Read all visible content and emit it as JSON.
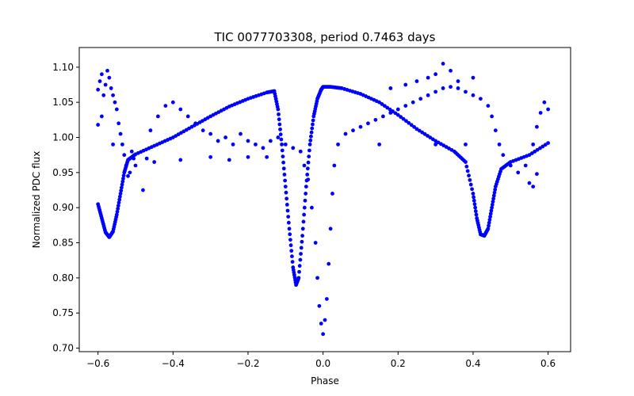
{
  "chart_data": {
    "type": "scatter",
    "title": "TIC 0077703308, period 0.7463 days",
    "xlabel": "Phase",
    "ylabel": "Normalized PDC flux",
    "xlim": [
      -0.65,
      0.66
    ],
    "ylim": [
      0.695,
      1.128
    ],
    "x_ticks": [
      -0.6,
      -0.4,
      -0.2,
      0.0,
      0.2,
      0.4,
      0.6
    ],
    "x_tick_labels": [
      "−0.6",
      "−0.4",
      "−0.2",
      "0.0",
      "0.2",
      "0.4",
      "0.6"
    ],
    "y_ticks": [
      0.7,
      0.75,
      0.8,
      0.85,
      0.9,
      0.95,
      1.0,
      1.05,
      1.1
    ],
    "y_tick_labels": [
      "0.70",
      "0.75",
      "0.80",
      "0.85",
      "0.90",
      "0.95",
      "1.00",
      "1.05",
      "1.10"
    ],
    "grid": false,
    "marker_color": "#0000ff",
    "series": [
      {
        "name": "",
        "trend_points": [
          [
            -0.6,
            0.905
          ],
          [
            -0.59,
            0.885
          ],
          [
            -0.58,
            0.865
          ],
          [
            -0.57,
            0.858
          ],
          [
            -0.56,
            0.866
          ],
          [
            -0.55,
            0.89
          ],
          [
            -0.54,
            0.92
          ],
          [
            -0.53,
            0.95
          ],
          [
            -0.52,
            0.968
          ],
          [
            -0.5,
            0.976
          ],
          [
            -0.45,
            0.988
          ],
          [
            -0.4,
            1.0
          ],
          [
            -0.35,
            1.015
          ],
          [
            -0.3,
            1.03
          ],
          [
            -0.25,
            1.044
          ],
          [
            -0.2,
            1.055
          ],
          [
            -0.15,
            1.064
          ],
          [
            -0.13,
            1.066
          ],
          [
            -0.12,
            1.04
          ],
          [
            -0.11,
            0.99
          ],
          [
            -0.1,
            0.93
          ],
          [
            -0.09,
            0.87
          ],
          [
            -0.08,
            0.815
          ],
          [
            -0.072,
            0.79
          ],
          [
            -0.065,
            0.8
          ],
          [
            -0.055,
            0.86
          ],
          [
            -0.045,
            0.93
          ],
          [
            -0.035,
            0.99
          ],
          [
            -0.025,
            1.03
          ],
          [
            -0.015,
            1.055
          ],
          [
            -0.005,
            1.068
          ],
          [
            0.0,
            1.072
          ],
          [
            0.02,
            1.072
          ],
          [
            0.05,
            1.07
          ],
          [
            0.1,
            1.062
          ],
          [
            0.15,
            1.05
          ],
          [
            0.2,
            1.032
          ],
          [
            0.25,
            1.012
          ],
          [
            0.3,
            0.995
          ],
          [
            0.35,
            0.98
          ],
          [
            0.38,
            0.965
          ],
          [
            0.4,
            0.92
          ],
          [
            0.41,
            0.885
          ],
          [
            0.42,
            0.862
          ],
          [
            0.43,
            0.86
          ],
          [
            0.44,
            0.87
          ],
          [
            0.45,
            0.9
          ],
          [
            0.46,
            0.93
          ],
          [
            0.475,
            0.955
          ],
          [
            0.5,
            0.965
          ],
          [
            0.55,
            0.975
          ],
          [
            0.6,
            0.992
          ]
        ],
        "scatter_points": [
          [
            -0.6,
            1.068
          ],
          [
            -0.595,
            1.08
          ],
          [
            -0.59,
            1.09
          ],
          [
            -0.585,
            1.06
          ],
          [
            -0.58,
            1.075
          ],
          [
            -0.575,
            1.095
          ],
          [
            -0.57,
            1.085
          ],
          [
            -0.565,
            1.07
          ],
          [
            -0.56,
            1.06
          ],
          [
            -0.555,
            1.05
          ],
          [
            -0.55,
            1.04
          ],
          [
            -0.545,
            1.02
          ],
          [
            -0.54,
            1.005
          ],
          [
            -0.535,
            0.99
          ],
          [
            -0.53,
            0.975
          ],
          [
            -0.525,
            0.96
          ],
          [
            -0.52,
            0.945
          ],
          [
            -0.515,
            0.95
          ],
          [
            -0.51,
            0.98
          ],
          [
            -0.505,
            0.97
          ],
          [
            -0.5,
            0.96
          ],
          [
            -0.48,
            0.925
          ],
          [
            -0.46,
            1.01
          ],
          [
            -0.44,
            1.03
          ],
          [
            -0.42,
            1.045
          ],
          [
            -0.4,
            1.05
          ],
          [
            -0.38,
            1.04
          ],
          [
            -0.36,
            1.03
          ],
          [
            -0.34,
            1.02
          ],
          [
            -0.32,
            1.01
          ],
          [
            -0.3,
            1.005
          ],
          [
            -0.28,
            0.995
          ],
          [
            -0.26,
            1.0
          ],
          [
            -0.24,
            0.99
          ],
          [
            -0.22,
            1.005
          ],
          [
            -0.2,
            0.995
          ],
          [
            -0.18,
            0.99
          ],
          [
            -0.16,
            0.985
          ],
          [
            -0.14,
            0.995
          ],
          [
            -0.12,
            1.0
          ],
          [
            -0.1,
            0.99
          ],
          [
            -0.08,
            0.985
          ],
          [
            -0.06,
            0.98
          ],
          [
            -0.05,
            0.96
          ],
          [
            -0.04,
            0.94
          ],
          [
            -0.03,
            0.9
          ],
          [
            -0.02,
            0.85
          ],
          [
            -0.015,
            0.8
          ],
          [
            -0.01,
            0.76
          ],
          [
            -0.005,
            0.735
          ],
          [
            0.0,
            0.72
          ],
          [
            0.005,
            0.74
          ],
          [
            0.01,
            0.77
          ],
          [
            0.015,
            0.82
          ],
          [
            0.02,
            0.87
          ],
          [
            0.025,
            0.92
          ],
          [
            0.03,
            0.96
          ],
          [
            0.04,
            0.99
          ],
          [
            0.06,
            1.005
          ],
          [
            0.08,
            1.01
          ],
          [
            0.1,
            1.015
          ],
          [
            0.12,
            1.02
          ],
          [
            0.14,
            1.025
          ],
          [
            0.16,
            1.03
          ],
          [
            0.18,
            1.035
          ],
          [
            0.2,
            1.04
          ],
          [
            0.22,
            1.045
          ],
          [
            0.24,
            1.05
          ],
          [
            0.26,
            1.055
          ],
          [
            0.28,
            1.06
          ],
          [
            0.3,
            1.065
          ],
          [
            0.32,
            1.07
          ],
          [
            0.34,
            1.072
          ],
          [
            0.36,
            1.07
          ],
          [
            0.38,
            1.065
          ],
          [
            0.4,
            1.06
          ],
          [
            0.42,
            1.055
          ],
          [
            0.44,
            1.045
          ],
          [
            0.45,
            1.03
          ],
          [
            0.46,
            1.01
          ],
          [
            0.47,
            0.99
          ],
          [
            0.48,
            0.975
          ],
          [
            0.5,
            0.96
          ],
          [
            0.52,
            0.95
          ],
          [
            0.54,
            0.96
          ],
          [
            0.56,
            0.99
          ],
          [
            0.57,
            1.015
          ],
          [
            0.58,
            1.035
          ],
          [
            0.59,
            1.05
          ],
          [
            0.6,
            1.04
          ],
          [
            0.3,
            1.09
          ],
          [
            0.32,
            1.105
          ],
          [
            0.28,
            1.085
          ],
          [
            0.34,
            1.095
          ],
          [
            0.36,
            1.08
          ],
          [
            0.4,
            1.085
          ],
          [
            0.25,
            1.08
          ],
          [
            0.22,
            1.075
          ],
          [
            0.18,
            1.07
          ],
          [
            0.15,
            0.99
          ],
          [
            0.3,
            0.99
          ],
          [
            0.38,
            0.99
          ],
          [
            -0.47,
            0.97
          ],
          [
            -0.45,
            0.965
          ],
          [
            -0.38,
            0.968
          ],
          [
            -0.3,
            0.972
          ],
          [
            -0.25,
            0.968
          ],
          [
            -0.2,
            0.972
          ],
          [
            -0.15,
            0.972
          ],
          [
            0.55,
            0.935
          ],
          [
            0.56,
            0.93
          ],
          [
            0.57,
            0.948
          ],
          [
            -0.56,
            0.99
          ],
          [
            -0.6,
            1.018
          ],
          [
            -0.59,
            1.03
          ]
        ]
      }
    ]
  }
}
